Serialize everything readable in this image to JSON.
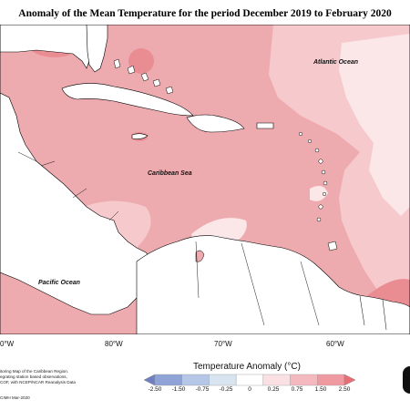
{
  "title": "Anomaly of the Mean Temperature for the period December 2019 to February 2020",
  "map": {
    "labels": {
      "atlantic": "Atlantic Ocean",
      "caribbean": "Caribbean Sea",
      "pacific": "Pacific Ocean"
    },
    "longitude_labels": [
      "80°W",
      "70°W",
      "60°W"
    ],
    "longitude_labels_partial": [
      "0°W"
    ]
  },
  "footnote": {
    "line1": "itoring Map of the Caribbean Region.",
    "line2": "egrating station based observations,",
    "line3": "COF, with NCEP/NCAR Reanalysis Data",
    "credit": "CIMH Mar-2020"
  },
  "legend": {
    "title": "Temperature Anomaly (°C)",
    "tick_labels": [
      "-2.50",
      "-1.50",
      "-0.75",
      "-0.25",
      "0",
      "0.25",
      "0.75",
      "1.50",
      "2.50"
    ],
    "colors": [
      "#6f7fc0",
      "#8fa3d6",
      "#b5c6e6",
      "#d8e4ef",
      "#ffffff",
      "#fbe0e3",
      "#f4b9be",
      "#ef9aa0",
      "#ea6c74"
    ]
  },
  "colors": {
    "land": "#ffffff",
    "anomaly_025_075": "#f6c9cc",
    "anomaly_075_150": "#eeabaf",
    "anomaly_150_250": "#e98d93",
    "anomaly_0_025": "#fbe6e8"
  }
}
